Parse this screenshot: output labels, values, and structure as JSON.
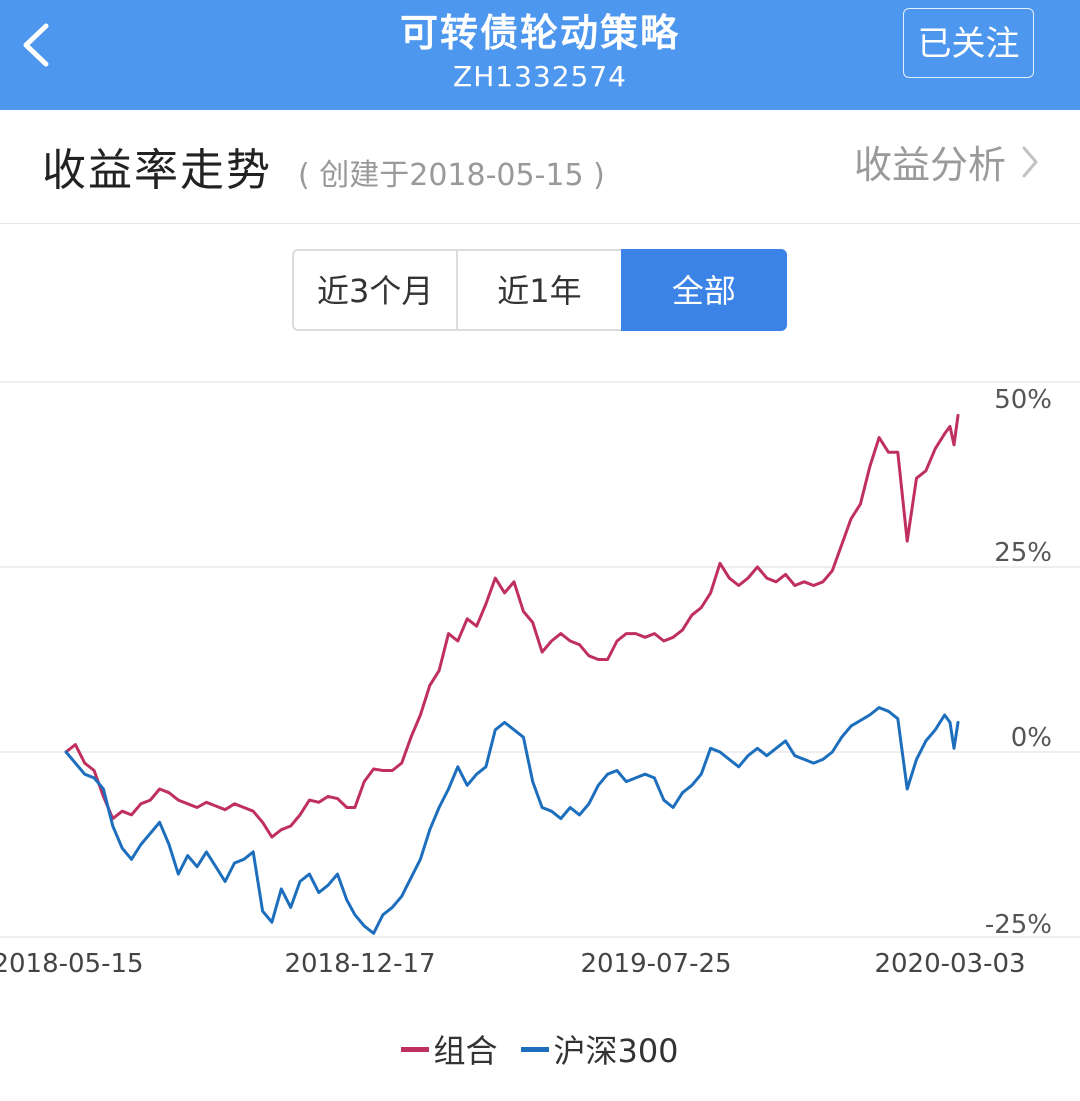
{
  "header": {
    "title": "可转债轮动策略",
    "code": "ZH1332574",
    "follow_label": "已关注"
  },
  "section": {
    "title": "收益率走势",
    "created": "( 创建于2018-05-15 )",
    "analysis_label": "收益分析"
  },
  "tabs": [
    {
      "label": "近3个月",
      "active": false
    },
    {
      "label": "近1年",
      "active": false
    },
    {
      "label": "全部",
      "active": true
    }
  ],
  "colors": {
    "header_bg": "#4e97ee",
    "active_tab": "#3c83e8",
    "portfolio": "#c0305e",
    "index": "#1d6fbd"
  },
  "chart_data": {
    "type": "line",
    "x_tick_labels": [
      "2018-05-15",
      "2018-12-17",
      "2019-07-25",
      "2020-03-03"
    ],
    "y_tick_labels": [
      "50%",
      "25%",
      "0%",
      "-25%"
    ],
    "ylim": [
      -25,
      50
    ],
    "xlim": [
      "2018-05-15",
      "2020-04-02"
    ],
    "grid": true,
    "legend_position": "bottom-center",
    "series": [
      {
        "name": "组合",
        "color": "#c0305e",
        "points": [
          [
            "2018-05-15",
            0.0
          ],
          [
            "2018-05-22",
            1.0
          ],
          [
            "2018-05-29",
            -1.5
          ],
          [
            "2018-06-05",
            -2.5
          ],
          [
            "2018-06-12",
            -6.0
          ],
          [
            "2018-06-19",
            -9.0
          ],
          [
            "2018-06-26",
            -8.0
          ],
          [
            "2018-07-03",
            -8.5
          ],
          [
            "2018-07-10",
            -7.0
          ],
          [
            "2018-07-17",
            -6.5
          ],
          [
            "2018-07-24",
            -5.0
          ],
          [
            "2018-07-31",
            -5.5
          ],
          [
            "2018-08-07",
            -6.5
          ],
          [
            "2018-08-14",
            -7.0
          ],
          [
            "2018-08-21",
            -7.5
          ],
          [
            "2018-08-28",
            -6.8
          ],
          [
            "2018-09-04",
            -7.3
          ],
          [
            "2018-09-11",
            -7.8
          ],
          [
            "2018-09-18",
            -7.0
          ],
          [
            "2018-09-25",
            -7.5
          ],
          [
            "2018-10-02",
            -8.0
          ],
          [
            "2018-10-09",
            -9.5
          ],
          [
            "2018-10-16",
            -11.5
          ],
          [
            "2018-10-23",
            -10.5
          ],
          [
            "2018-10-30",
            -10.0
          ],
          [
            "2018-11-06",
            -8.5
          ],
          [
            "2018-11-13",
            -6.5
          ],
          [
            "2018-11-20",
            -6.8
          ],
          [
            "2018-11-27",
            -6.0
          ],
          [
            "2018-12-04",
            -6.3
          ],
          [
            "2018-12-11",
            -7.5
          ],
          [
            "2018-12-17",
            -7.5
          ],
          [
            "2018-12-24",
            -4.0
          ],
          [
            "2018-12-31",
            -2.3
          ],
          [
            "2019-01-07",
            -2.5
          ],
          [
            "2019-01-14",
            -2.5
          ],
          [
            "2019-01-21",
            -1.5
          ],
          [
            "2019-01-28",
            2.0
          ],
          [
            "2019-02-04",
            5.0
          ],
          [
            "2019-02-11",
            9.0
          ],
          [
            "2019-02-18",
            11.0
          ],
          [
            "2019-02-25",
            16.0
          ],
          [
            "2019-03-04",
            15.0
          ],
          [
            "2019-03-11",
            18.0
          ],
          [
            "2019-03-18",
            17.0
          ],
          [
            "2019-03-25",
            20.0
          ],
          [
            "2019-04-01",
            23.5
          ],
          [
            "2019-04-08",
            21.5
          ],
          [
            "2019-04-15",
            23.0
          ],
          [
            "2019-04-22",
            19.0
          ],
          [
            "2019-04-29",
            17.5
          ],
          [
            "2019-05-06",
            13.5
          ],
          [
            "2019-05-13",
            15.0
          ],
          [
            "2019-05-20",
            16.0
          ],
          [
            "2019-05-27",
            15.0
          ],
          [
            "2019-06-03",
            14.5
          ],
          [
            "2019-06-10",
            13.0
          ],
          [
            "2019-06-17",
            12.5
          ],
          [
            "2019-06-24",
            12.5
          ],
          [
            "2019-07-01",
            15.0
          ],
          [
            "2019-07-08",
            16.0
          ],
          [
            "2019-07-15",
            16.0
          ],
          [
            "2019-07-22",
            15.5
          ],
          [
            "2019-07-29",
            16.0
          ],
          [
            "2019-08-05",
            15.0
          ],
          [
            "2019-08-12",
            15.5
          ],
          [
            "2019-08-19",
            16.5
          ],
          [
            "2019-08-26",
            18.5
          ],
          [
            "2019-09-02",
            19.5
          ],
          [
            "2019-09-09",
            21.5
          ],
          [
            "2019-09-16",
            25.5
          ],
          [
            "2019-09-23",
            23.5
          ],
          [
            "2019-09-30",
            22.5
          ],
          [
            "2019-10-07",
            23.5
          ],
          [
            "2019-10-14",
            25.0
          ],
          [
            "2019-10-21",
            23.5
          ],
          [
            "2019-10-28",
            23.0
          ],
          [
            "2019-11-04",
            24.0
          ],
          [
            "2019-11-11",
            22.5
          ],
          [
            "2019-11-18",
            23.0
          ],
          [
            "2019-11-25",
            22.5
          ],
          [
            "2019-12-02",
            23.0
          ],
          [
            "2019-12-09",
            24.5
          ],
          [
            "2019-12-16",
            28.0
          ],
          [
            "2019-12-23",
            31.5
          ],
          [
            "2019-12-30",
            33.5
          ],
          [
            "2020-01-06",
            38.5
          ],
          [
            "2020-01-13",
            42.5
          ],
          [
            "2020-01-20",
            40.5
          ],
          [
            "2020-01-27",
            40.5
          ],
          [
            "2020-02-03",
            28.5
          ],
          [
            "2020-02-10",
            37.0
          ],
          [
            "2020-02-17",
            38.0
          ],
          [
            "2020-02-24",
            41.0
          ],
          [
            "2020-03-02",
            43.0
          ],
          [
            "2020-03-06",
            44.0
          ],
          [
            "2020-03-09",
            41.5
          ],
          [
            "2020-03-12",
            45.5
          ]
        ]
      },
      {
        "name": "沪深300",
        "color": "#1d6fbd",
        "points": [
          [
            "2018-05-15",
            0.0
          ],
          [
            "2018-05-22",
            -1.5
          ],
          [
            "2018-05-29",
            -3.0
          ],
          [
            "2018-06-05",
            -3.5
          ],
          [
            "2018-06-12",
            -5.0
          ],
          [
            "2018-06-19",
            -10.0
          ],
          [
            "2018-06-26",
            -13.0
          ],
          [
            "2018-07-03",
            -14.5
          ],
          [
            "2018-07-10",
            -12.5
          ],
          [
            "2018-07-17",
            -11.0
          ],
          [
            "2018-07-24",
            -9.5
          ],
          [
            "2018-07-31",
            -12.5
          ],
          [
            "2018-08-07",
            -16.5
          ],
          [
            "2018-08-14",
            -14.0
          ],
          [
            "2018-08-21",
            -15.5
          ],
          [
            "2018-08-28",
            -13.5
          ],
          [
            "2018-09-04",
            -15.5
          ],
          [
            "2018-09-11",
            -17.5
          ],
          [
            "2018-09-18",
            -15.0
          ],
          [
            "2018-09-25",
            -14.5
          ],
          [
            "2018-10-02",
            -13.5
          ],
          [
            "2018-10-09",
            -21.5
          ],
          [
            "2018-10-16",
            -23.0
          ],
          [
            "2018-10-23",
            -18.5
          ],
          [
            "2018-10-30",
            -21.0
          ],
          [
            "2018-11-06",
            -17.5
          ],
          [
            "2018-11-13",
            -16.5
          ],
          [
            "2018-11-20",
            -19.0
          ],
          [
            "2018-11-27",
            -18.0
          ],
          [
            "2018-12-04",
            -16.5
          ],
          [
            "2018-12-11",
            -20.0
          ],
          [
            "2018-12-17",
            -22.0
          ],
          [
            "2018-12-24",
            -23.5
          ],
          [
            "2018-12-31",
            -24.5
          ],
          [
            "2019-01-07",
            -22.0
          ],
          [
            "2019-01-14",
            -21.0
          ],
          [
            "2019-01-21",
            -19.5
          ],
          [
            "2019-01-28",
            -17.0
          ],
          [
            "2019-02-04",
            -14.5
          ],
          [
            "2019-02-11",
            -10.5
          ],
          [
            "2019-02-18",
            -7.5
          ],
          [
            "2019-02-25",
            -5.0
          ],
          [
            "2019-03-04",
            -2.0
          ],
          [
            "2019-03-11",
            -4.5
          ],
          [
            "2019-03-18",
            -3.0
          ],
          [
            "2019-03-25",
            -2.0
          ],
          [
            "2019-04-01",
            3.0
          ],
          [
            "2019-04-08",
            4.0
          ],
          [
            "2019-04-15",
            3.0
          ],
          [
            "2019-04-22",
            2.0
          ],
          [
            "2019-04-29",
            -4.0
          ],
          [
            "2019-05-06",
            -7.5
          ],
          [
            "2019-05-13",
            -8.0
          ],
          [
            "2019-05-20",
            -9.0
          ],
          [
            "2019-05-27",
            -7.5
          ],
          [
            "2019-06-03",
            -8.5
          ],
          [
            "2019-06-10",
            -7.0
          ],
          [
            "2019-06-17",
            -4.5
          ],
          [
            "2019-06-24",
            -3.0
          ],
          [
            "2019-07-01",
            -2.5
          ],
          [
            "2019-07-08",
            -4.0
          ],
          [
            "2019-07-15",
            -3.5
          ],
          [
            "2019-07-22",
            -3.0
          ],
          [
            "2019-07-29",
            -3.5
          ],
          [
            "2019-08-05",
            -6.5
          ],
          [
            "2019-08-12",
            -7.5
          ],
          [
            "2019-08-19",
            -5.5
          ],
          [
            "2019-08-26",
            -4.5
          ],
          [
            "2019-09-02",
            -3.0
          ],
          [
            "2019-09-09",
            0.5
          ],
          [
            "2019-09-16",
            0.0
          ],
          [
            "2019-09-23",
            -1.0
          ],
          [
            "2019-09-30",
            -2.0
          ],
          [
            "2019-10-07",
            -0.5
          ],
          [
            "2019-10-14",
            0.5
          ],
          [
            "2019-10-21",
            -0.5
          ],
          [
            "2019-10-28",
            0.5
          ],
          [
            "2019-11-04",
            1.5
          ],
          [
            "2019-11-11",
            -0.5
          ],
          [
            "2019-11-18",
            -1.0
          ],
          [
            "2019-11-25",
            -1.5
          ],
          [
            "2019-12-02",
            -1.0
          ],
          [
            "2019-12-09",
            0.0
          ],
          [
            "2019-12-16",
            2.0
          ],
          [
            "2019-12-23",
            3.5
          ],
          [
            "2020-01-06",
            5.0
          ],
          [
            "2020-01-13",
            6.0
          ],
          [
            "2020-01-20",
            5.5
          ],
          [
            "2020-01-27",
            4.5
          ],
          [
            "2020-02-03",
            -5.0
          ],
          [
            "2020-02-10",
            -1.0
          ],
          [
            "2020-02-17",
            1.5
          ],
          [
            "2020-02-24",
            3.0
          ],
          [
            "2020-03-02",
            5.0
          ],
          [
            "2020-03-06",
            4.0
          ],
          [
            "2020-03-09",
            0.5
          ],
          [
            "2020-03-12",
            4.0
          ]
        ]
      }
    ]
  }
}
